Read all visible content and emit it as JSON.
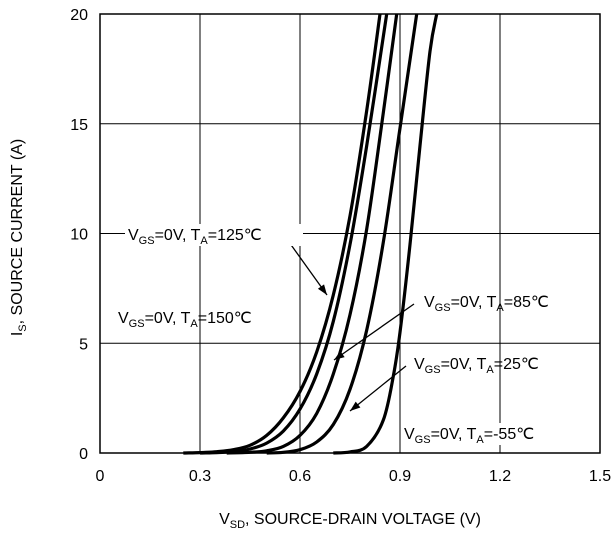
{
  "chart_data": {
    "type": "line",
    "xlabel": {
      "prefix": "V",
      "sub": "SD",
      "rest": ", SOURCE-DRAIN VOLTAGE (V)"
    },
    "ylabel": {
      "prefix": "I",
      "sub": "S",
      "rest": ", SOURCE CURRENT (A)"
    },
    "xlim": [
      0,
      1.5
    ],
    "ylim": [
      0,
      20
    ],
    "xticks": [
      "0",
      "0.3",
      "0.6",
      "0.9",
      "1.2",
      "1.5"
    ],
    "yticks": [
      "0",
      "5",
      "10",
      "15",
      "20"
    ],
    "grid": true,
    "series": [
      {
        "name": {
          "a": "V",
          "a_sub": "GS",
          "b": "=0V, T",
          "b_sub": "A",
          "c": "=150℃"
        },
        "x": [
          0.25,
          0.3,
          0.35,
          0.4,
          0.45,
          0.5,
          0.55,
          0.6,
          0.65,
          0.7,
          0.75,
          0.8,
          0.84
        ],
        "y": [
          0,
          0.02,
          0.06,
          0.15,
          0.35,
          0.8,
          1.6,
          2.8,
          4.6,
          7.2,
          10.8,
          15.6,
          20
        ]
      },
      {
        "name": {
          "a": "V",
          "a_sub": "GS",
          "b": "=0V, T",
          "b_sub": "A",
          "c": "=125℃"
        },
        "x": [
          0.3,
          0.35,
          0.4,
          0.45,
          0.5,
          0.55,
          0.6,
          0.65,
          0.7,
          0.75,
          0.8,
          0.86
        ],
        "y": [
          0,
          0.02,
          0.06,
          0.18,
          0.45,
          1.0,
          2.0,
          3.6,
          6.0,
          9.5,
          14.0,
          20
        ]
      },
      {
        "name": {
          "a": "V",
          "a_sub": "GS",
          "b": "=0V, T",
          "b_sub": "A",
          "c": "=85℃"
        },
        "x": [
          0.38,
          0.45,
          0.5,
          0.55,
          0.6,
          0.65,
          0.7,
          0.75,
          0.8,
          0.85,
          0.89
        ],
        "y": [
          0,
          0.03,
          0.1,
          0.3,
          0.8,
          1.8,
          3.6,
          6.3,
          10.2,
          15.5,
          20
        ]
      },
      {
        "name": {
          "a": "V",
          "a_sub": "GS",
          "b": "=0V, T",
          "b_sub": "A",
          "c": "=25℃"
        },
        "x": [
          0.5,
          0.55,
          0.6,
          0.65,
          0.7,
          0.75,
          0.8,
          0.85,
          0.9,
          0.95
        ],
        "y": [
          0,
          0.03,
          0.15,
          0.5,
          1.3,
          2.9,
          5.6,
          9.6,
          14.8,
          20
        ]
      },
      {
        "name": {
          "a": "V",
          "a_sub": "GS",
          "b": "=0V, T",
          "b_sub": "A",
          "c": "=-55℃"
        },
        "x": [
          0.7,
          0.75,
          0.8,
          0.85,
          0.88,
          0.9,
          0.93,
          0.96,
          0.99,
          1.01
        ],
        "y": [
          0,
          0.05,
          0.3,
          1.5,
          3.5,
          5.5,
          9.5,
          14.0,
          18.3,
          20
        ]
      }
    ]
  }
}
